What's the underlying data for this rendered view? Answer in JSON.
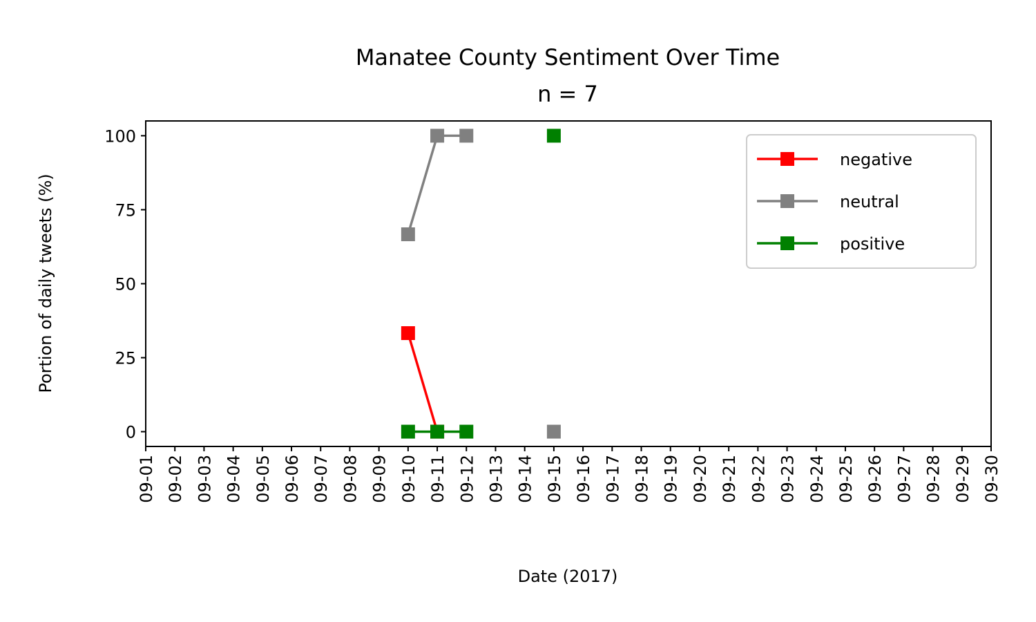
{
  "chart_data": {
    "type": "line",
    "title": "Manatee County Sentiment Over Time",
    "subtitle": "n = 7",
    "xlabel": "Date (2017)",
    "ylabel": "Portion of daily tweets (%)",
    "x_ticks": [
      "09-01",
      "09-02",
      "09-03",
      "09-04",
      "09-05",
      "09-06",
      "09-07",
      "09-08",
      "09-09",
      "09-10",
      "09-11",
      "09-12",
      "09-13",
      "09-14",
      "09-15",
      "09-16",
      "09-17",
      "09-18",
      "09-19",
      "09-20",
      "09-21",
      "09-22",
      "09-23",
      "09-24",
      "09-25",
      "09-26",
      "09-27",
      "09-28",
      "09-29",
      "09-30"
    ],
    "y_ticks": [
      0,
      25,
      50,
      75,
      100
    ],
    "xlim": [
      "2017-09-01",
      "2017-09-30"
    ],
    "ylim": [
      -5,
      105
    ],
    "grid": false,
    "legend_position": "top-right",
    "series": [
      {
        "name": "negative",
        "color": "#ff0000",
        "marker": "square",
        "points": [
          {
            "x": "2017-09-10",
            "y": 33.3
          },
          {
            "x": "2017-09-11",
            "y": 0
          }
        ]
      },
      {
        "name": "neutral",
        "color": "#808080",
        "marker": "square",
        "points": [
          {
            "x": "2017-09-10",
            "y": 66.7
          },
          {
            "x": "2017-09-11",
            "y": 100
          },
          {
            "x": "2017-09-12",
            "y": 100
          },
          {
            "x": "2017-09-15",
            "y": 0
          }
        ]
      },
      {
        "name": "positive",
        "color": "#008000",
        "marker": "square",
        "points": [
          {
            "x": "2017-09-10",
            "y": 0
          },
          {
            "x": "2017-09-11",
            "y": 0
          },
          {
            "x": "2017-09-12",
            "y": 0
          },
          {
            "x": "2017-09-15",
            "y": 100
          }
        ]
      }
    ]
  }
}
